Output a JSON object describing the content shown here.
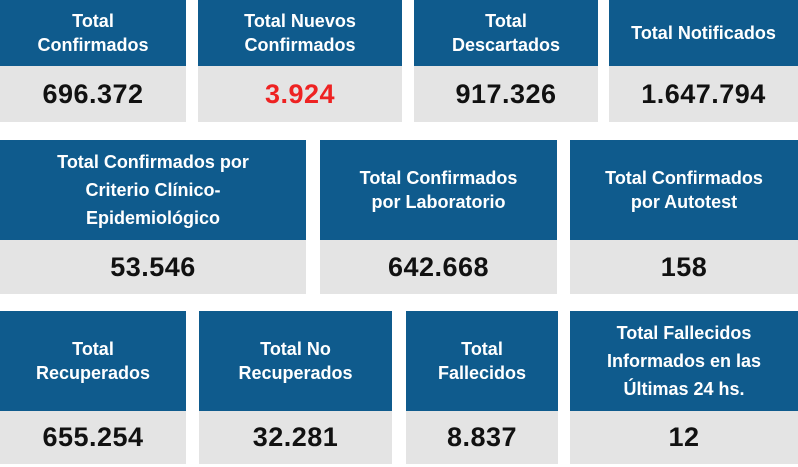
{
  "cards": [
    {
      "label": [
        "Total",
        "Confirmados"
      ],
      "value": "696.372"
    },
    {
      "label": [
        "Total Nuevos",
        "Confirmados"
      ],
      "value": "3.924",
      "value_color": "#ee2222"
    },
    {
      "label": [
        "Total",
        "Descartados"
      ],
      "value": "917.326"
    },
    {
      "label": [
        "Total Notificados"
      ],
      "value": "1.647.794"
    },
    {
      "label": [
        "Total Confirmados por",
        "Criterio Clínico-",
        "Epidemiológico"
      ],
      "value": "53.546"
    },
    {
      "label": [
        "Total Confirmados",
        "por Laboratorio"
      ],
      "value": "642.668"
    },
    {
      "label": [
        "Total Confirmados",
        "por Autotest"
      ],
      "value": "158"
    },
    {
      "label": [
        "Total",
        "Recuperados"
      ],
      "value": "655.254"
    },
    {
      "label": [
        "Total No",
        "Recuperados"
      ],
      "value": "32.281"
    },
    {
      "label": [
        "Total",
        "Fallecidos"
      ],
      "value": "8.837"
    },
    {
      "label": [
        "Total Fallecidos",
        "Informados en las",
        "Últimas 24 hs."
      ],
      "value": "12"
    }
  ],
  "colors": {
    "header_bg": "#0f5b8d",
    "value_bg": "#e4e4e4",
    "highlight": "#ee2222"
  }
}
